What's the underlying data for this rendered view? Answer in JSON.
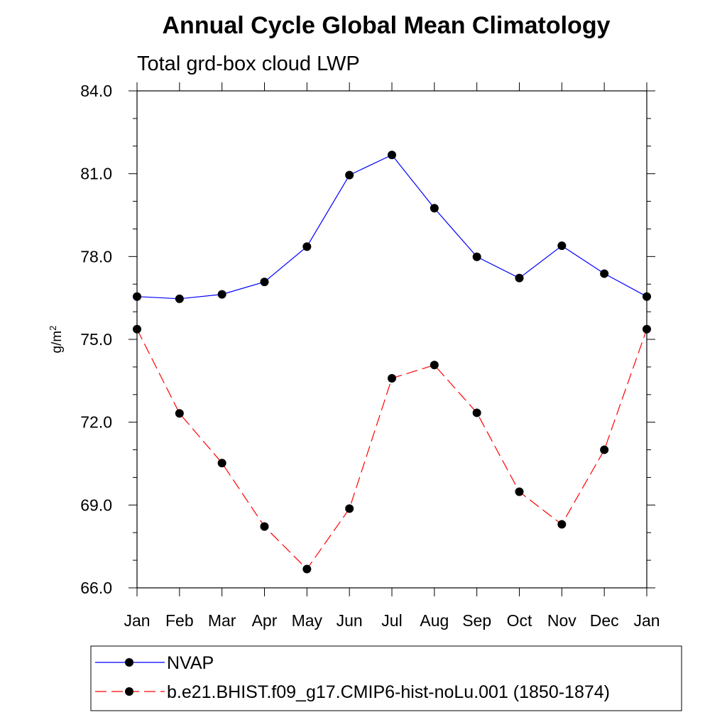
{
  "chart_data": {
    "type": "line",
    "title": "Annual Cycle Global Mean Climatology",
    "subtitle": "Total grd-box cloud LWP",
    "xlabel": "",
    "ylabel": "g/m",
    "ylabel_superscript": "2",
    "ylim": [
      66.0,
      84.0
    ],
    "yticks": [
      "84.0",
      "81.0",
      "78.0",
      "75.0",
      "72.0",
      "69.0",
      "66.0"
    ],
    "ytick_values": [
      84.0,
      81.0,
      78.0,
      75.0,
      72.0,
      69.0,
      66.0
    ],
    "categories": [
      "Jan",
      "Feb",
      "Mar",
      "Apr",
      "May",
      "Jun",
      "Jul",
      "Aug",
      "Sep",
      "Oct",
      "Nov",
      "Dec",
      "Jan"
    ],
    "series": [
      {
        "name": "NVAP",
        "color": "#0000ff",
        "style": "solid",
        "values": [
          76.55,
          76.47,
          76.63,
          77.08,
          78.36,
          80.95,
          81.68,
          79.75,
          77.99,
          77.22,
          78.39,
          77.38,
          76.55
        ]
      },
      {
        "name": "b.e21.BHIST.f09_g17.CMIP6-hist-noLu.001 (1850-1874)",
        "color": "#ff0000",
        "style": "dashed",
        "values": [
          75.37,
          72.32,
          70.52,
          68.22,
          66.68,
          68.87,
          73.59,
          74.07,
          72.34,
          69.48,
          68.3,
          71.0,
          75.37
        ]
      }
    ],
    "grid": false,
    "legend_position": "bottom"
  }
}
